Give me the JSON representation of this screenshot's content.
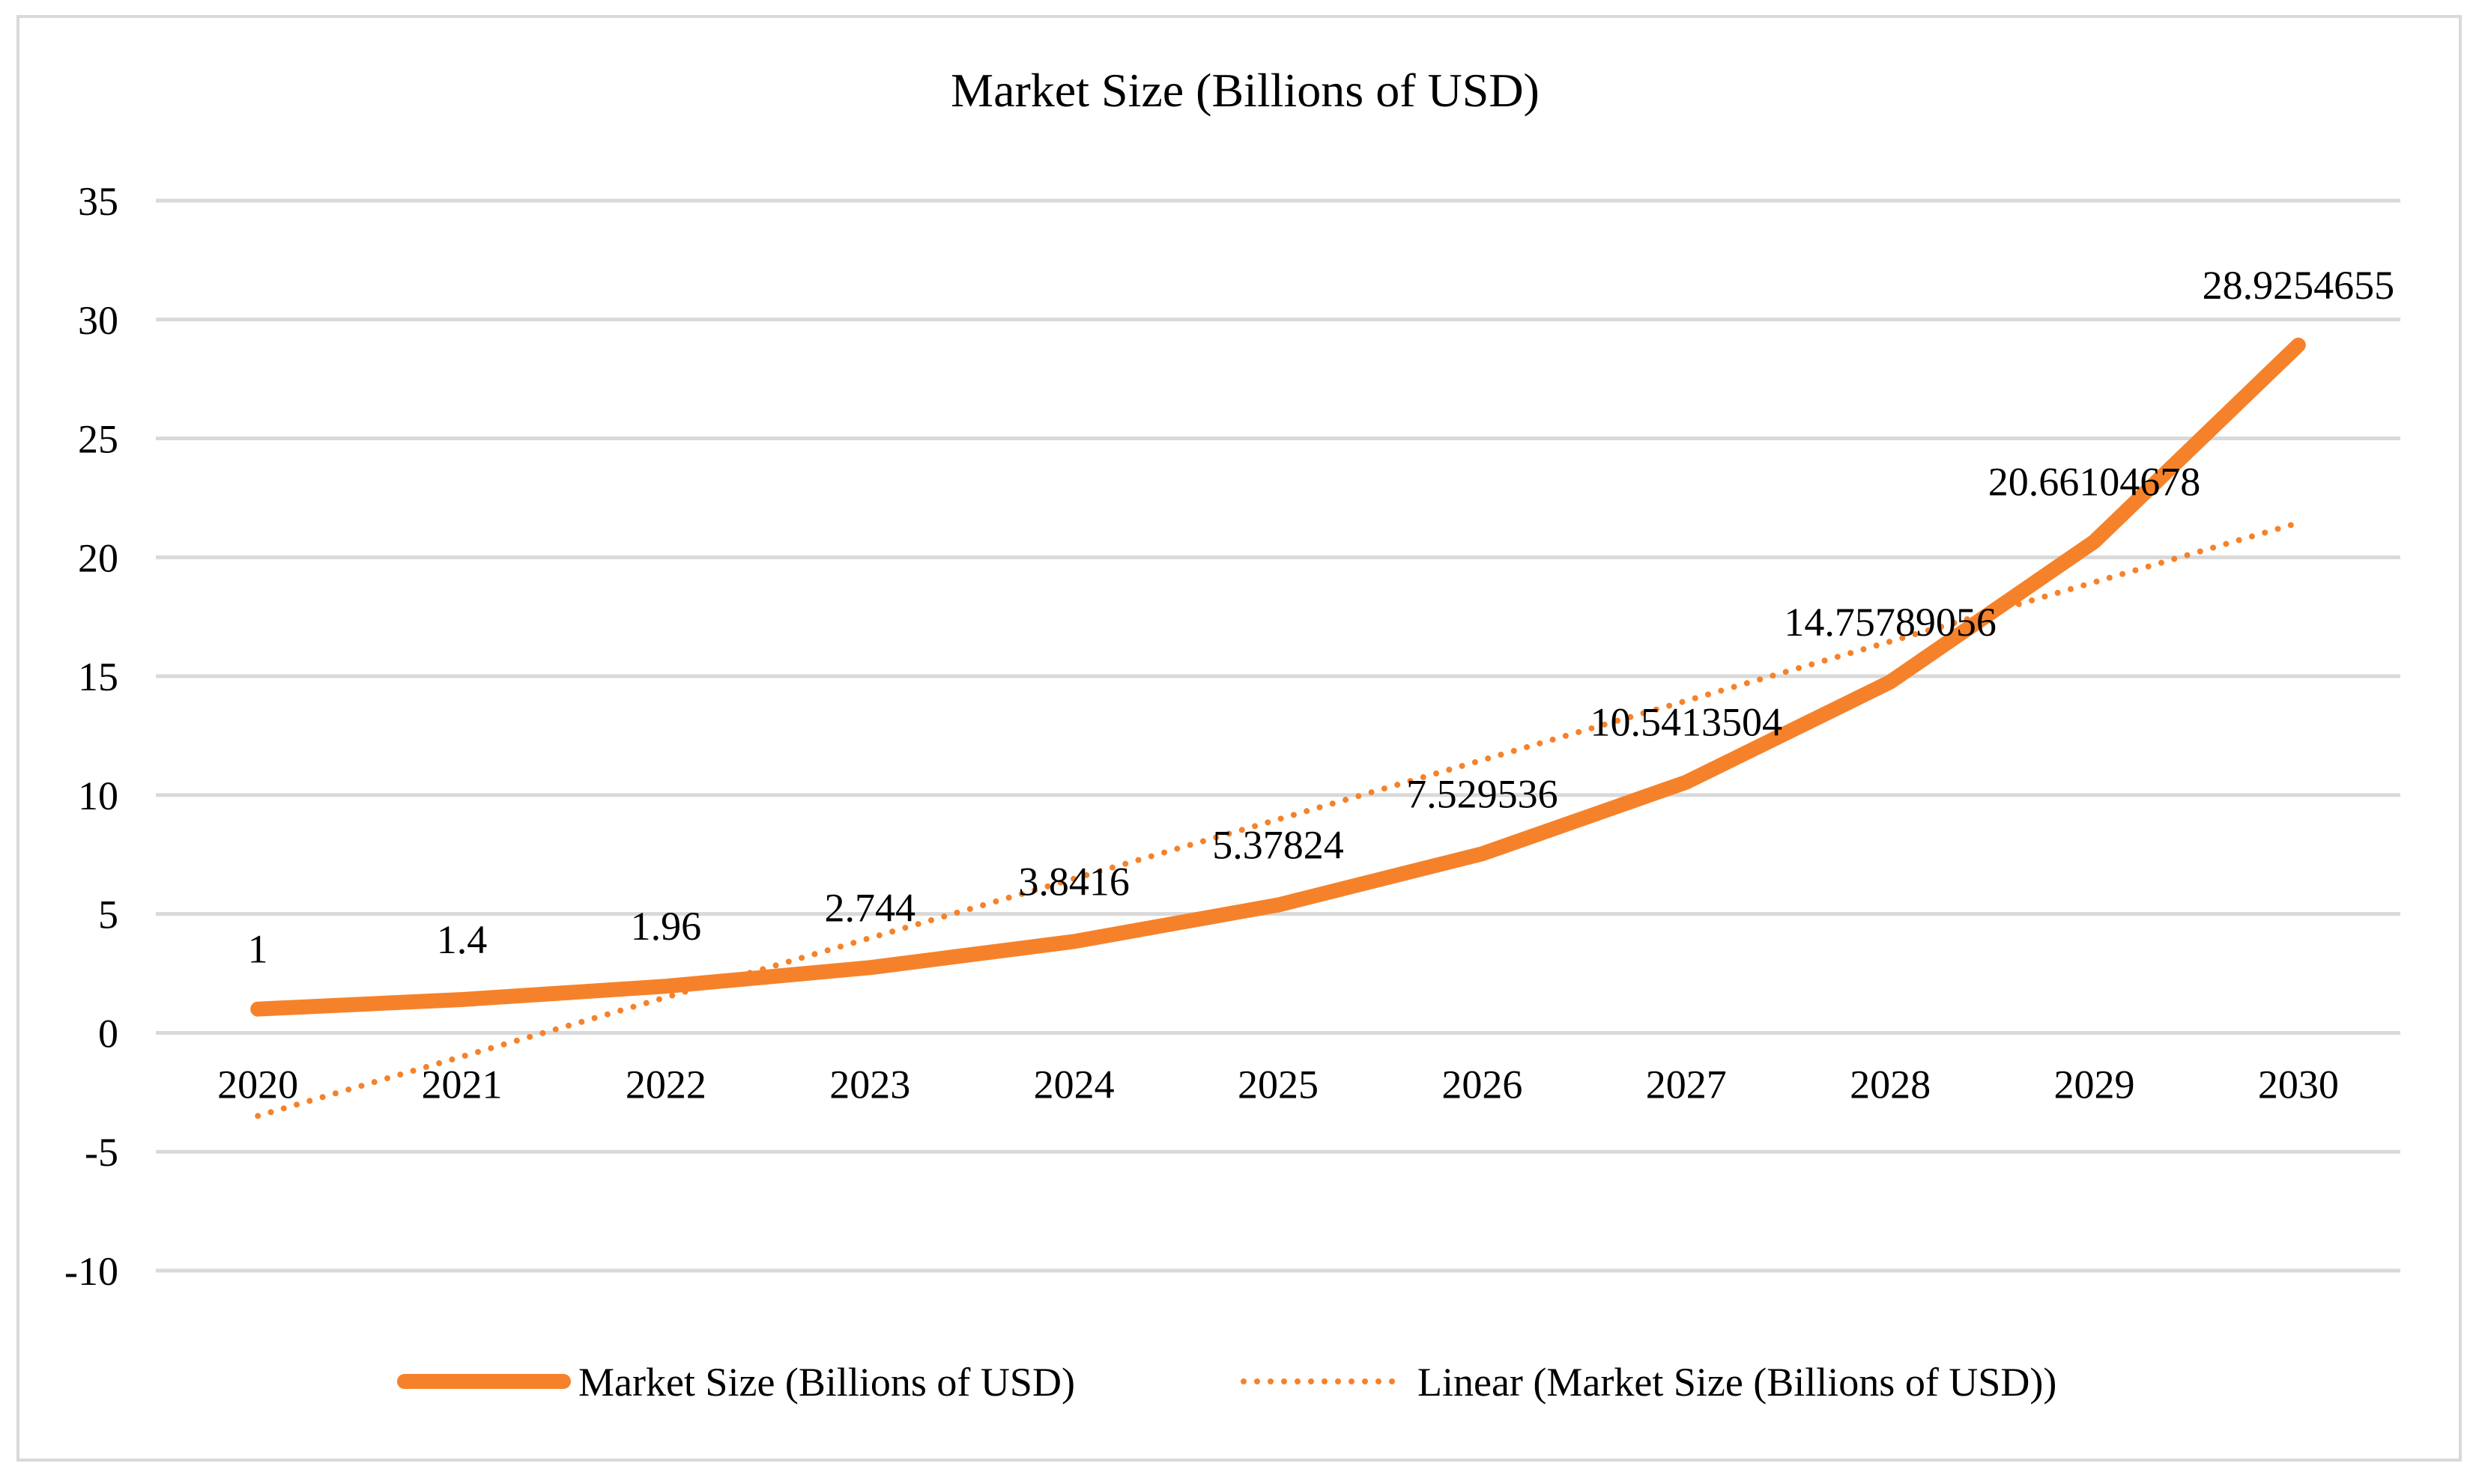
{
  "chart_data": {
    "type": "line",
    "title": "Market Size (Billions of USD)",
    "xlabel": "",
    "ylabel": "",
    "categories": [
      "2020",
      "2021",
      "2022",
      "2023",
      "2024",
      "2025",
      "2026",
      "2027",
      "2028",
      "2029",
      "2030"
    ],
    "series": [
      {
        "name": "Market Size (Billions of USD)",
        "values": [
          1,
          1.4,
          1.96,
          2.744,
          3.8416,
          5.37824,
          7.529536,
          10.5413504,
          14.75789056,
          20.66104678,
          28.9254655
        ],
        "data_labels": [
          "1",
          "1.4",
          "1.96",
          "2.744",
          "3.8416",
          "5.37824",
          "7.529536",
          "10.5413504",
          "14.75789056",
          "20.66104678",
          "28.9254655"
        ],
        "color": "#f5822a",
        "style": "solid"
      },
      {
        "name": "Linear (Market Size (Billions of USD))",
        "trendline_of": "Market Size (Billions of USD)",
        "color": "#f5822a",
        "style": "dotted"
      }
    ],
    "ylim": [
      -10,
      35
    ],
    "yticks": [
      -10,
      -5,
      0,
      5,
      10,
      15,
      20,
      25,
      30,
      35
    ],
    "ytick_labels": [
      "-10",
      "-5",
      "0",
      "5",
      "10",
      "15",
      "20",
      "25",
      "30",
      "35"
    ],
    "grid": true,
    "legend": "bottom",
    "colors": {
      "series": "#f5822a",
      "grid": "#d9d9d9",
      "frame": "#d9d9d9"
    }
  }
}
